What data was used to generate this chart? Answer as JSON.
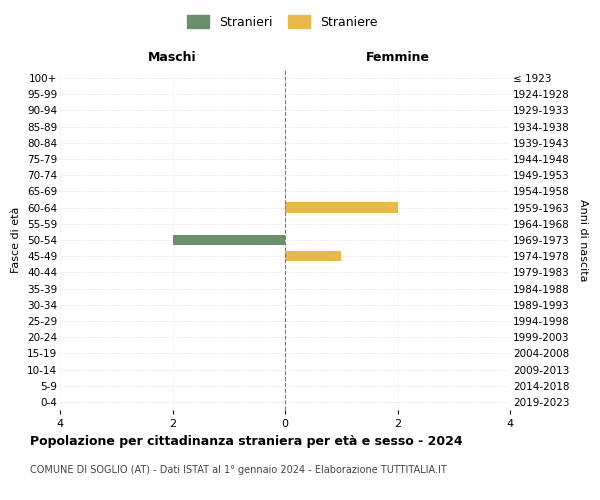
{
  "age_groups": [
    "100+",
    "95-99",
    "90-94",
    "85-89",
    "80-84",
    "75-79",
    "70-74",
    "65-69",
    "60-64",
    "55-59",
    "50-54",
    "45-49",
    "40-44",
    "35-39",
    "30-34",
    "25-29",
    "20-24",
    "15-19",
    "10-14",
    "5-9",
    "0-4"
  ],
  "birth_years": [
    "≤ 1923",
    "1924-1928",
    "1929-1933",
    "1934-1938",
    "1939-1943",
    "1944-1948",
    "1949-1953",
    "1954-1958",
    "1959-1963",
    "1964-1968",
    "1969-1973",
    "1974-1978",
    "1979-1983",
    "1984-1988",
    "1989-1993",
    "1994-1998",
    "1999-2003",
    "2004-2008",
    "2009-2013",
    "2014-2018",
    "2019-2023"
  ],
  "males": [
    0,
    0,
    0,
    0,
    0,
    0,
    0,
    0,
    0,
    0,
    2,
    0,
    0,
    0,
    0,
    0,
    0,
    0,
    0,
    0,
    0
  ],
  "females": [
    0,
    0,
    0,
    0,
    0,
    0,
    0,
    0,
    2,
    0,
    0,
    1,
    0,
    0,
    0,
    0,
    0,
    0,
    0,
    0,
    0
  ],
  "male_color": "#6b8e6b",
  "female_color": "#e8b84b",
  "xlim": 4,
  "title": "Popolazione per cittadinanza straniera per età e sesso - 2024",
  "subtitle": "COMUNE DI SOGLIO (AT) - Dati ISTAT al 1° gennaio 2024 - Elaborazione TUTTITALIA.IT",
  "left_header": "Maschi",
  "right_header": "Femmine",
  "left_ylabel": "Fasce di età",
  "right_ylabel": "Anni di nascita",
  "legend_male": "Stranieri",
  "legend_female": "Straniere",
  "background_color": "#ffffff",
  "grid_color": "#cccccc",
  "dashed_line_color": "#808060"
}
